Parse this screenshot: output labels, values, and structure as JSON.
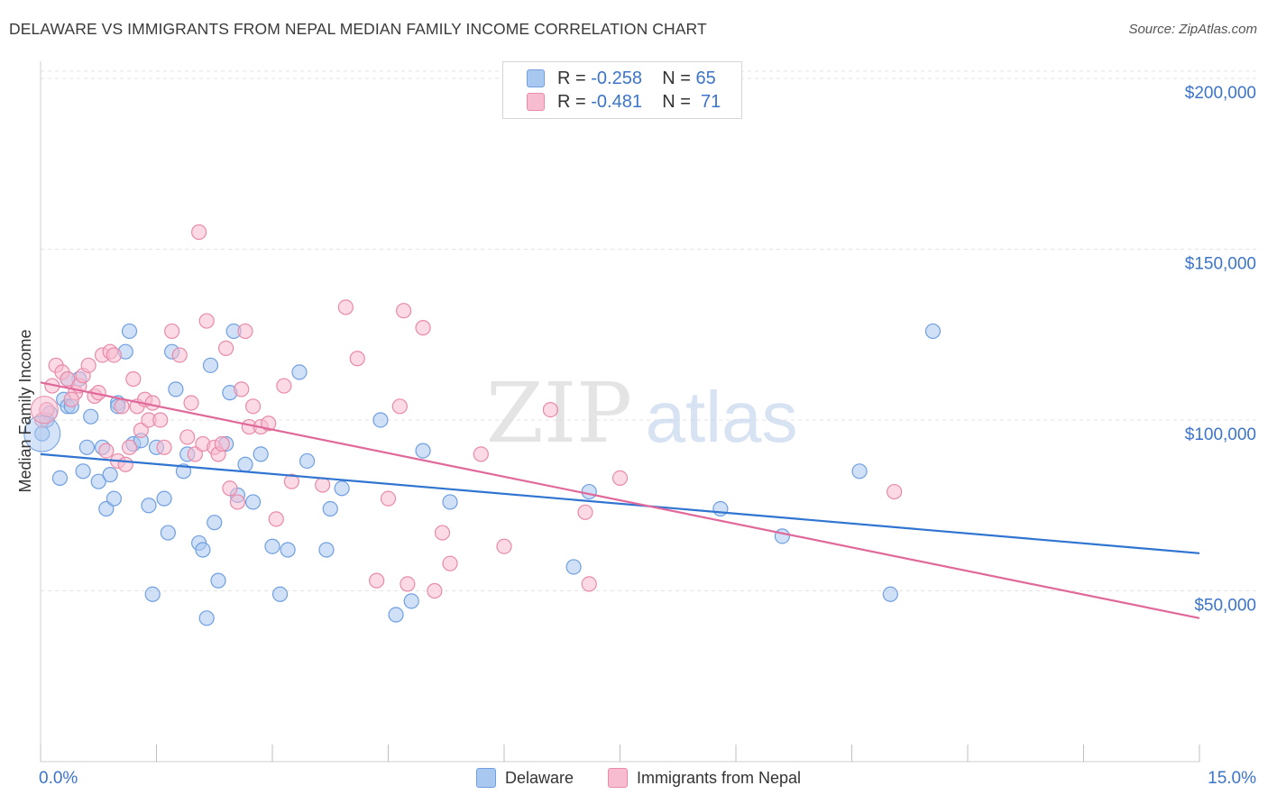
{
  "header": {
    "title": "DELAWARE VS IMMIGRANTS FROM NEPAL MEDIAN FAMILY INCOME CORRELATION CHART",
    "source": "Source: ZipAtlas.com"
  },
  "watermark": {
    "part1": "ZIP",
    "part2": "atlas"
  },
  "legend": {
    "rows": [
      {
        "r_label": "R =",
        "r_value": "-0.258",
        "n_label": "N =",
        "n_value": "65",
        "color": "#a9c8f0",
        "border": "#6f9fe0"
      },
      {
        "r_label": "R =",
        "r_value": "-0.481",
        "n_label": "N =",
        "n_value": "71",
        "color": "#f7bcd0",
        "border": "#e88aa8"
      }
    ]
  },
  "bottom_legend": {
    "series1": "Delaware",
    "series2": "Immigrants from Nepal"
  },
  "colors": {
    "delaware_fill": "#a9c8f0",
    "delaware_stroke": "#6f9fe0",
    "delaware_line": "#2f74d0",
    "nepal_fill": "#f7bcd0",
    "nepal_stroke": "#e88aa8",
    "nepal_line": "#e0689a",
    "axis_text": "#3c74c9",
    "grid": "#e3e3e3"
  },
  "chart_data": {
    "type": "scatter",
    "title": "DELAWARE VS IMMIGRANTS FROM NEPAL MEDIAN FAMILY INCOME CORRELATION CHART",
    "xlabel": "",
    "ylabel": "Median Family Income",
    "xlim": [
      0,
      15
    ],
    "ylim": [
      0,
      205000
    ],
    "x_tick_labels": [
      "0.0%",
      "15.0%"
    ],
    "y_ticks": [
      50000,
      100000,
      150000,
      200000
    ],
    "y_tick_labels": [
      "$50,000",
      "$100,000",
      "$150,000",
      "$200,000"
    ],
    "grid": true,
    "legend_position": "top-center",
    "series": [
      {
        "name": "Delaware",
        "R": -0.258,
        "N": 65,
        "trend": {
          "x": [
            0,
            15
          ],
          "y": [
            90000,
            61000
          ]
        },
        "points": [
          [
            0.02,
            96000
          ],
          [
            0.08,
            100000
          ],
          [
            0.12,
            102000
          ],
          [
            0.25,
            83000
          ],
          [
            0.3,
            106000
          ],
          [
            0.35,
            104000
          ],
          [
            0.4,
            104000
          ],
          [
            0.5,
            112000
          ],
          [
            0.55,
            85000
          ],
          [
            0.6,
            92000
          ],
          [
            0.65,
            101000
          ],
          [
            0.75,
            82000
          ],
          [
            0.8,
            92000
          ],
          [
            0.85,
            74000
          ],
          [
            0.9,
            84000
          ],
          [
            0.95,
            77000
          ],
          [
            1.0,
            105000
          ],
          [
            1.1,
            120000
          ],
          [
            1.15,
            126000
          ],
          [
            1.2,
            93000
          ],
          [
            1.3,
            94000
          ],
          [
            1.4,
            75000
          ],
          [
            1.45,
            49000
          ],
          [
            1.5,
            92000
          ],
          [
            1.6,
            77000
          ],
          [
            1.65,
            67000
          ],
          [
            1.7,
            120000
          ],
          [
            1.75,
            109000
          ],
          [
            1.85,
            85000
          ],
          [
            1.9,
            90000
          ],
          [
            2.05,
            64000
          ],
          [
            2.1,
            62000
          ],
          [
            2.2,
            116000
          ],
          [
            2.25,
            70000
          ],
          [
            2.3,
            53000
          ],
          [
            2.4,
            93000
          ],
          [
            2.45,
            108000
          ],
          [
            2.5,
            126000
          ],
          [
            2.55,
            78000
          ],
          [
            2.65,
            87000
          ],
          [
            2.75,
            76000
          ],
          [
            2.85,
            90000
          ],
          [
            3.0,
            63000
          ],
          [
            3.1,
            49000
          ],
          [
            3.2,
            62000
          ],
          [
            3.35,
            114000
          ],
          [
            3.45,
            88000
          ],
          [
            3.7,
            62000
          ],
          [
            3.75,
            74000
          ],
          [
            3.9,
            80000
          ],
          [
            4.4,
            100000
          ],
          [
            4.6,
            43000
          ],
          [
            4.8,
            47000
          ],
          [
            4.95,
            91000
          ],
          [
            5.3,
            76000
          ],
          [
            6.9,
            57000
          ],
          [
            7.1,
            79000
          ],
          [
            8.8,
            74000
          ],
          [
            9.6,
            66000
          ],
          [
            10.6,
            85000
          ],
          [
            11.0,
            49000
          ],
          [
            11.55,
            126000
          ],
          [
            0.35,
            112000
          ],
          [
            2.15,
            42000
          ],
          [
            1.0,
            104000
          ]
        ]
      },
      {
        "name": "Immigrants from Nepal",
        "R": -0.481,
        "N": 71,
        "trend": {
          "x": [
            0,
            15
          ],
          "y": [
            111000,
            42000
          ]
        },
        "points": [
          [
            0.02,
            100000
          ],
          [
            0.08,
            103000
          ],
          [
            0.15,
            110000
          ],
          [
            0.2,
            116000
          ],
          [
            0.28,
            114000
          ],
          [
            0.35,
            112000
          ],
          [
            0.45,
            108000
          ],
          [
            0.5,
            110000
          ],
          [
            0.55,
            113000
          ],
          [
            0.62,
            116000
          ],
          [
            0.7,
            107000
          ],
          [
            0.75,
            108000
          ],
          [
            0.8,
            119000
          ],
          [
            0.85,
            91000
          ],
          [
            0.9,
            120000
          ],
          [
            0.95,
            119000
          ],
          [
            1.0,
            88000
          ],
          [
            1.05,
            104000
          ],
          [
            1.1,
            87000
          ],
          [
            1.2,
            112000
          ],
          [
            1.25,
            104000
          ],
          [
            1.3,
            97000
          ],
          [
            1.35,
            106000
          ],
          [
            1.4,
            100000
          ],
          [
            1.45,
            105000
          ],
          [
            1.55,
            100000
          ],
          [
            1.6,
            92000
          ],
          [
            1.7,
            126000
          ],
          [
            1.8,
            119000
          ],
          [
            1.9,
            95000
          ],
          [
            1.95,
            105000
          ],
          [
            2.0,
            90000
          ],
          [
            2.05,
            155000
          ],
          [
            2.1,
            93000
          ],
          [
            2.15,
            129000
          ],
          [
            2.25,
            92000
          ],
          [
            2.3,
            90000
          ],
          [
            2.35,
            93000
          ],
          [
            2.4,
            121000
          ],
          [
            2.45,
            80000
          ],
          [
            2.55,
            76000
          ],
          [
            2.6,
            109000
          ],
          [
            2.65,
            126000
          ],
          [
            2.7,
            98000
          ],
          [
            2.75,
            104000
          ],
          [
            2.85,
            98000
          ],
          [
            2.95,
            99000
          ],
          [
            3.05,
            71000
          ],
          [
            3.15,
            110000
          ],
          [
            3.25,
            82000
          ],
          [
            3.65,
            81000
          ],
          [
            3.95,
            133000
          ],
          [
            4.1,
            118000
          ],
          [
            4.35,
            53000
          ],
          [
            4.5,
            77000
          ],
          [
            4.65,
            104000
          ],
          [
            4.7,
            132000
          ],
          [
            4.75,
            52000
          ],
          [
            4.95,
            127000
          ],
          [
            5.1,
            50000
          ],
          [
            5.2,
            67000
          ],
          [
            5.3,
            58000
          ],
          [
            5.7,
            90000
          ],
          [
            6.0,
            63000
          ],
          [
            6.6,
            103000
          ],
          [
            7.05,
            73000
          ],
          [
            7.1,
            52000
          ],
          [
            7.5,
            83000
          ],
          [
            11.05,
            79000
          ],
          [
            0.4,
            106000
          ],
          [
            1.15,
            92000
          ]
        ]
      }
    ]
  }
}
